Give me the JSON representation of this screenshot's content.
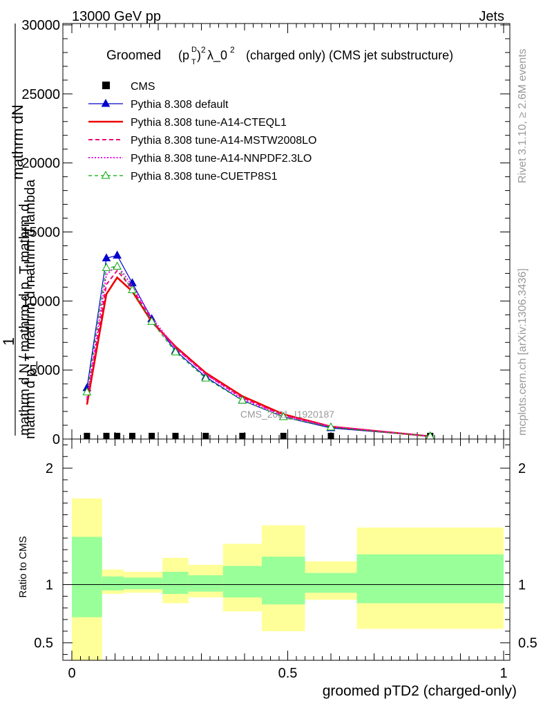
{
  "header": {
    "left": "13000 GeV pp",
    "right": "Jets"
  },
  "side_text": {
    "rivet": "Rivet 3.1.10, ≥ 2.6M events",
    "mcplots": "mcplots.cern.ch [arXiv:1306.3436]"
  },
  "plot_title": {
    "prefix": "Groomed",
    "suffix": "(charged only) (CMS jet substructure)"
  },
  "watermark": "CMS_2021_I1920187",
  "main_ylabel": {
    "num_line1": "mathrm dN",
    "num_line2": "mathrm d p_T mathrm d mathrm d lambda",
    "one": "1",
    "den": "mathrm d N / mathrm d p_T mathrm d"
  },
  "ratio_ylabel": "Ratio to CMS",
  "xlabel": "groomed pTD2 (charged-only)",
  "chart_data": [
    {
      "type": "line",
      "panel": "main",
      "xlim": [
        0,
        1
      ],
      "ylim": [
        0,
        30000
      ],
      "yticks": [
        "0",
        "5000",
        "10000",
        "15000",
        "20000",
        "25000",
        "30000"
      ],
      "x": [
        0.035,
        0.08,
        0.105,
        0.14,
        0.185,
        0.24,
        0.31,
        0.395,
        0.49,
        0.6,
        0.83
      ],
      "series": [
        {
          "name": "CMS",
          "style": "marker-square",
          "color": "#000000",
          "values": [
            0,
            0,
            0,
            0,
            0,
            0,
            0,
            0,
            0,
            0,
            0
          ]
        },
        {
          "name": "Pythia 8.308 default",
          "style": "solid-triangle",
          "color": "#0000cc",
          "values": [
            3700,
            13100,
            13300,
            11300,
            8700,
            6400,
            4500,
            2800,
            1600,
            800,
            200
          ]
        },
        {
          "name": "Pythia 8.308 tune-A14-CTEQL1",
          "style": "solid-thick",
          "color": "#ee0000",
          "values": [
            2500,
            10500,
            11700,
            10700,
            8500,
            6700,
            4800,
            3100,
            1800,
            900,
            200
          ]
        },
        {
          "name": "Pythia 8.308 tune-A14-MSTW2008LO",
          "style": "dashed",
          "color": "#ee0077",
          "values": [
            2800,
            11200,
            12200,
            10900,
            8600,
            6600,
            4700,
            3000,
            1700,
            900,
            200
          ]
        },
        {
          "name": "Pythia 8.308 tune-A14-NNPDF2.3LO",
          "style": "dotted",
          "color": "#ee00ee",
          "values": [
            3000,
            11900,
            12600,
            11100,
            8800,
            6600,
            4700,
            2900,
            1700,
            900,
            200
          ]
        },
        {
          "name": "Pythia 8.308 tune-CUETP8S1",
          "style": "dashed-triangle",
          "color": "#00aa00",
          "values": [
            3400,
            12400,
            12500,
            10800,
            8500,
            6300,
            4400,
            2800,
            1600,
            850,
            200
          ]
        }
      ]
    },
    {
      "type": "area",
      "panel": "ratio",
      "xlim": [
        0,
        1
      ],
      "ylim": [
        0.35,
        2.25
      ],
      "yticks": [
        "0.5",
        "1",
        "2"
      ],
      "xticks": [
        "0",
        "0.5",
        "1"
      ],
      "reference": 1,
      "bins": [
        {
          "lo": 0.0,
          "hi": 0.07,
          "stat": [
            0.72,
            1.41
          ],
          "total": [
            0.33,
            1.74
          ]
        },
        {
          "lo": 0.07,
          "hi": 0.12,
          "stat": [
            0.95,
            1.07
          ],
          "total": [
            0.92,
            1.13
          ]
        },
        {
          "lo": 0.12,
          "hi": 0.21,
          "stat": [
            0.96,
            1.06
          ],
          "total": [
            0.93,
            1.11
          ]
        },
        {
          "lo": 0.21,
          "hi": 0.27,
          "stat": [
            0.92,
            1.11
          ],
          "total": [
            0.84,
            1.23
          ]
        },
        {
          "lo": 0.27,
          "hi": 0.35,
          "stat": [
            0.94,
            1.08
          ],
          "total": [
            0.89,
            1.17
          ]
        },
        {
          "lo": 0.35,
          "hi": 0.44,
          "stat": [
            0.89,
            1.16
          ],
          "total": [
            0.77,
            1.35
          ]
        },
        {
          "lo": 0.44,
          "hi": 0.54,
          "stat": [
            0.83,
            1.24
          ],
          "total": [
            0.6,
            1.51
          ]
        },
        {
          "lo": 0.54,
          "hi": 0.66,
          "stat": [
            0.93,
            1.1
          ],
          "total": [
            0.87,
            1.2
          ]
        },
        {
          "lo": 0.66,
          "hi": 1.0,
          "stat": [
            0.84,
            1.26
          ],
          "total": [
            0.62,
            1.49
          ]
        }
      ]
    }
  ]
}
